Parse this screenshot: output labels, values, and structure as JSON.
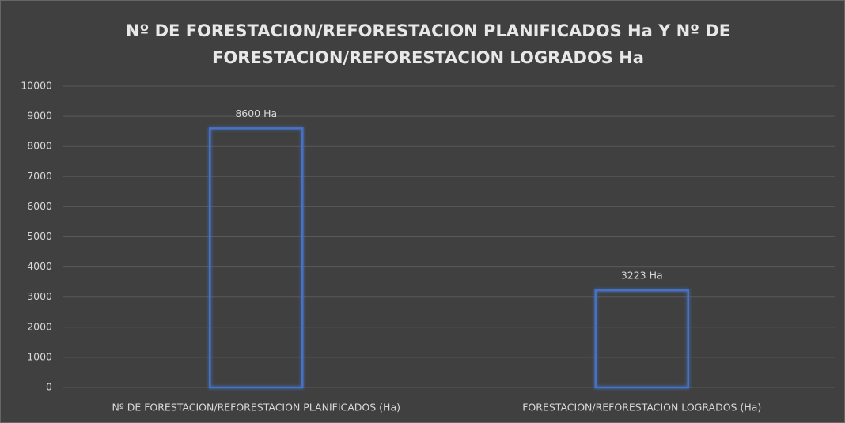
{
  "chart_data": {
    "type": "bar",
    "title": [
      "Nº DE FORESTACION/REFORESTACION PLANIFICADOS Ha Y Nº DE",
      "FORESTACION/REFORESTACION LOGRADOS Ha"
    ],
    "categories": [
      "Nº DE FORESTACION/REFORESTACION PLANIFICADOS (Ha)",
      "FORESTACION/REFORESTACION LOGRADOS (Ha)"
    ],
    "values": [
      8600,
      3223
    ],
    "value_labels": [
      "8600 Ha",
      "3223 Ha"
    ],
    "color": "#4472c4",
    "ylim": [
      0,
      10000
    ],
    "yticks": [
      0,
      1000,
      2000,
      3000,
      4000,
      5000,
      6000,
      7000,
      8000,
      9000,
      10000
    ],
    "grid": true
  }
}
